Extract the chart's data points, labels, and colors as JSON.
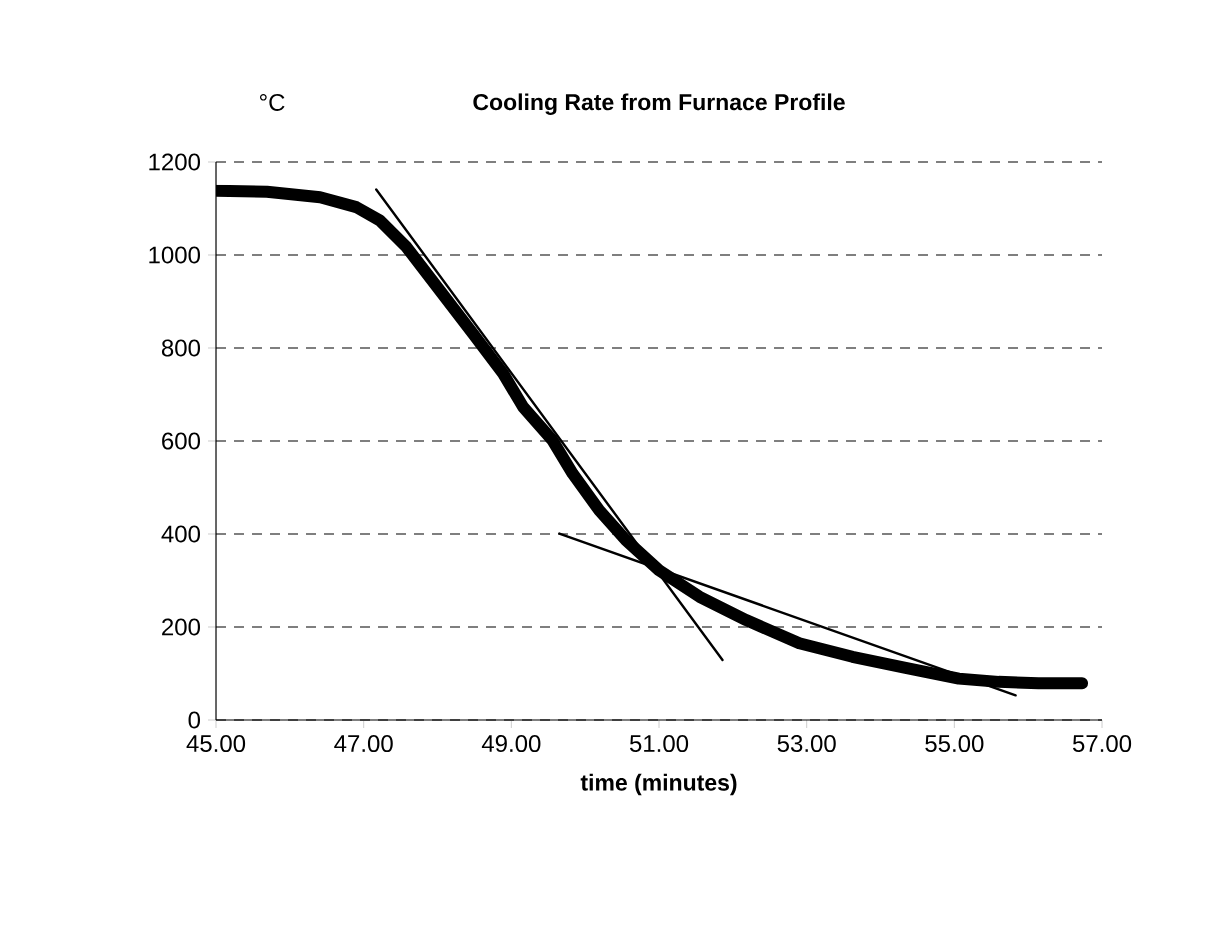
{
  "chart_data": {
    "type": "line",
    "title": "**Cooling Rate from Furnace Profile**",
    "xlabel": "**time (minutes)**",
    "ylabel": "°C",
    "xlim": [
      45,
      57
    ],
    "xticks": [
      {
        "value": 45,
        "label": "45.00"
      },
      {
        "value": 47,
        "label": "47.00"
      },
      {
        "value": 49,
        "label": "49.00"
      },
      {
        "value": 51,
        "label": "51.00"
      },
      {
        "value": 53,
        "label": "53.00"
      },
      {
        "value": 55,
        "label": "55.00"
      },
      {
        "value": 57,
        "label": "57.00"
      }
    ],
    "ylim": [
      0,
      1200
    ],
    "yticks": [
      0,
      200,
      400,
      600,
      800,
      1000,
      1200
    ],
    "grid": "y",
    "marker": "none",
    "series": [
      {
        "color": "#000000",
        "x": [
          45,
          45.69,
          46.41,
          46.9,
          47.22,
          47.58,
          48.03,
          48.48,
          48.89,
          49.16,
          49.56,
          49.83,
          50.19,
          50.55,
          51.0,
          51.55,
          52.18,
          52.9,
          53.62,
          54.34,
          55.06,
          55.6,
          56.14,
          56.73
        ],
        "values": [
          1138,
          1136,
          1124,
          1103,
          1074,
          1017,
          924,
          831,
          745,
          673,
          601,
          530,
          451,
          387,
          322,
          265,
          215,
          165,
          136,
          112,
          89,
          82,
          79,
          79
        ]
      },
      {
        "color": "#000000",
        "x": [
          47.17,
          51.86
        ],
        "values": [
          1141,
          129
        ]
      },
      {
        "color": "#000000",
        "x": [
          49.65,
          55.83
        ],
        "values": [
          401,
          53
        ]
      }
    ]
  }
}
